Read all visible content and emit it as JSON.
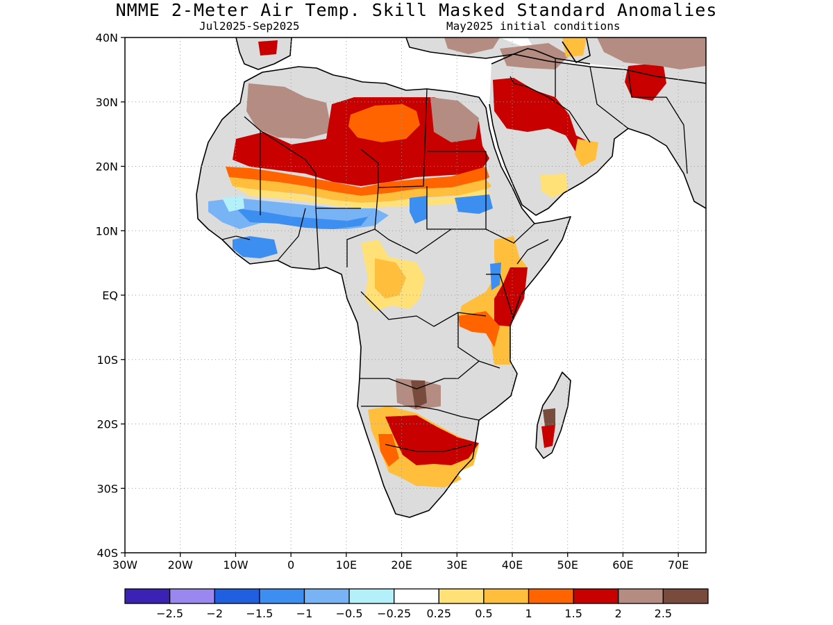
{
  "title": "NMME 2-Meter Air Temp. Skill Masked Standard Anomalies",
  "subtitle_left": "Jul2025-Sep2025",
  "subtitle_right": "May2025 initial conditions",
  "map": {
    "lon_range": [
      -30,
      75
    ],
    "lat_range": [
      -40,
      40
    ],
    "lat_ticks": [
      {
        "v": 40,
        "label": "40N"
      },
      {
        "v": 30,
        "label": "30N"
      },
      {
        "v": 20,
        "label": "20N"
      },
      {
        "v": 10,
        "label": "10N"
      },
      {
        "v": 0,
        "label": "EQ"
      },
      {
        "v": -10,
        "label": "10S"
      },
      {
        "v": -20,
        "label": "20S"
      },
      {
        "v": -30,
        "label": "30S"
      },
      {
        "v": -40,
        "label": "40S"
      }
    ],
    "lon_ticks": [
      {
        "v": -30,
        "label": "30W"
      },
      {
        "v": -20,
        "label": "20W"
      },
      {
        "v": -10,
        "label": "10W"
      },
      {
        "v": 0,
        "label": "0"
      },
      {
        "v": 10,
        "label": "10E"
      },
      {
        "v": 20,
        "label": "20E"
      },
      {
        "v": 30,
        "label": "30E"
      },
      {
        "v": 40,
        "label": "40E"
      },
      {
        "v": 50,
        "label": "50E"
      },
      {
        "v": 60,
        "label": "60E"
      },
      {
        "v": 70,
        "label": "70E"
      }
    ],
    "masked_color": "#dcdcdc",
    "grid": true
  },
  "legend": {
    "colors": [
      "#3c22b4",
      "#9b87f0",
      "#1f5fe0",
      "#3c8ef0",
      "#78b4f5",
      "#b4f0fa",
      "#ffffff",
      "#ffe178",
      "#ffbe3c",
      "#ff6400",
      "#c80000",
      "#b48c82",
      "#784b3c"
    ],
    "labels": [
      "-2.5",
      "-2",
      "-1.5",
      "-1",
      "-0.5",
      "-0.25",
      "0.25",
      "0.5",
      "1",
      "1.5",
      "2",
      "2.5"
    ]
  }
}
